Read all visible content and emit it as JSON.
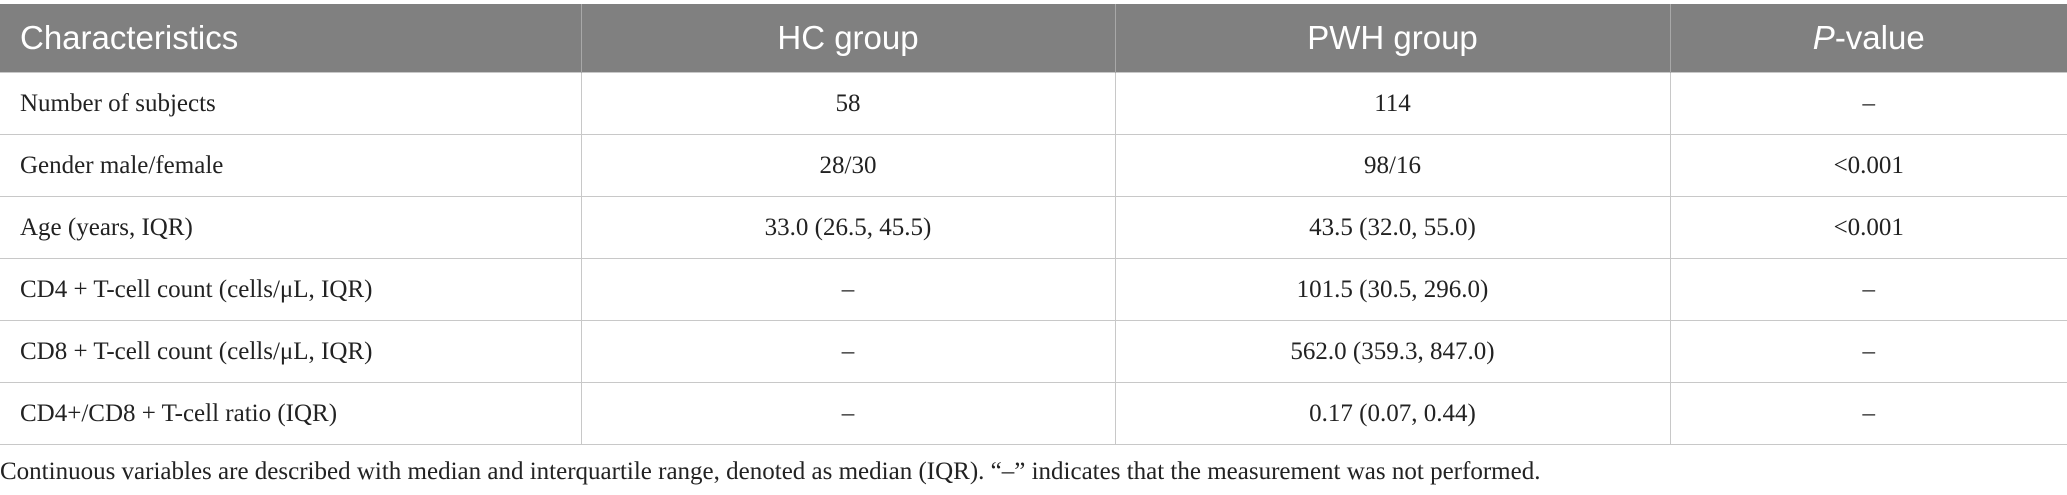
{
  "table": {
    "columns": [
      "Characteristics",
      "HC group",
      "PWH group",
      {
        "italic": "P",
        "text": "-value"
      }
    ],
    "rows": [
      [
        "Number of subjects",
        "58",
        "114",
        "–"
      ],
      [
        "Gender male/female",
        "28/30",
        "98/16",
        "<0.001"
      ],
      [
        "Age (years, IQR)",
        "33.0 (26.5, 45.5)",
        "43.5 (32.0, 55.0)",
        "<0.001"
      ],
      [
        "CD4 + T-cell count (cells/μL, IQR)",
        "–",
        "101.5 (30.5, 296.0)",
        "–"
      ],
      [
        "CD8 + T-cell count (cells/μL, IQR)",
        "–",
        "562.0 (359.3, 847.0)",
        "–"
      ],
      [
        "CD4+/CD8 + T-cell ratio (IQR)",
        "–",
        "0.17 (0.07, 0.44)",
        "–"
      ]
    ],
    "footnote": "Continuous variables are described with median and interquartile range, denoted as median (IQR). “–” indicates that the measurement was not performed."
  }
}
